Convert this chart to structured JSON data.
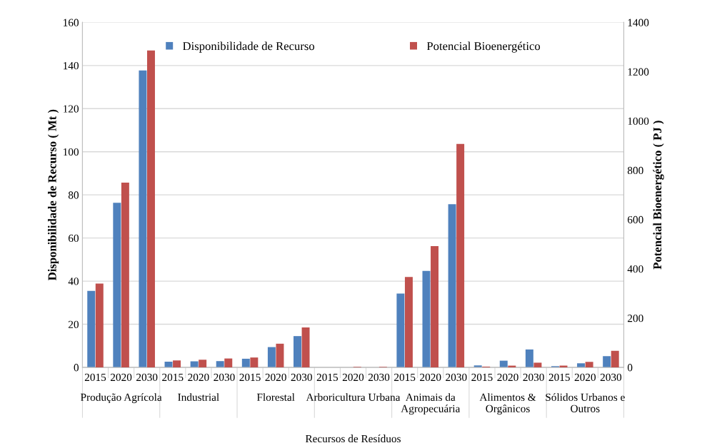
{
  "chart_data": {
    "type": "bar",
    "xlabel": "Recursos de Resíduos",
    "ylabel": "Disponibilidade de Recurso ( Mt )",
    "y2label": "Potencial Bioenergético ( PJ )",
    "categories": [
      "2015",
      "2020",
      "2030",
      "2015",
      "2020",
      "2030",
      "2015",
      "2020",
      "2030",
      "2015",
      "2020",
      "2030",
      "2015",
      "2020",
      "2030",
      "2015",
      "2020",
      "2030",
      "2015",
      "2020",
      "2030"
    ],
    "series": [
      {
        "name": "Disponibilidade de Recurso",
        "color": "#4f81bd",
        "values": [
          35.5,
          76.3,
          137.7,
          2.6,
          2.8,
          2.9,
          4.0,
          9.4,
          14.5,
          0,
          null,
          null,
          34.2,
          44.7,
          75.7,
          0.9,
          3.1,
          8.3,
          0.6,
          1.9,
          5.2
        ]
      },
      {
        "name": "Potencial Bioenergético",
        "color": "#c0504d",
        "axis": "y2",
        "values": [
          340,
          750,
          1286,
          28,
          31,
          36,
          40,
          96,
          162,
          0,
          2,
          2,
          367,
          492,
          907,
          3,
          7,
          19,
          7,
          22,
          67
        ]
      }
    ],
    "annotations": [
      "Produção Agrícola",
      "Industrial",
      "Florestal",
      "Arboricultura Urbana",
      "Animais da\nAgropecuária",
      "Alimentos &\nOrgânicos",
      "Sólidos Urbanos e\nOutros"
    ],
    "ylim": [
      0,
      160
    ],
    "yticks": [
      0,
      20,
      40,
      60,
      80,
      100,
      120,
      140,
      160
    ],
    "y2lim": [
      0,
      1400
    ],
    "y2ticks": [
      0,
      200,
      400,
      600,
      800,
      1000,
      1200,
      1400
    ],
    "grid": "y",
    "legend": "top"
  }
}
